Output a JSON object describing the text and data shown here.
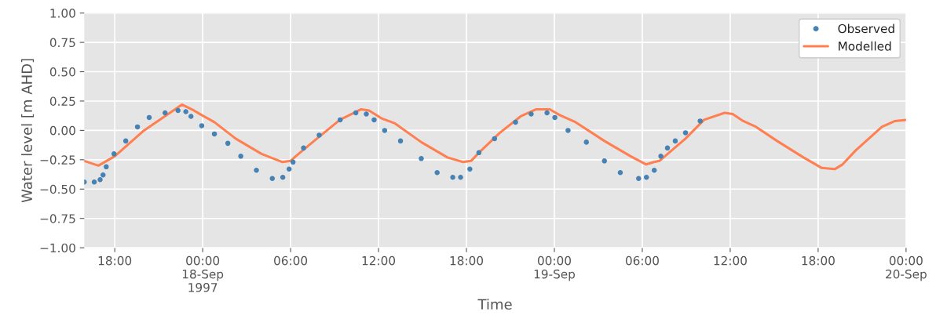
{
  "chart_data": {
    "type": "line",
    "xlabel": "Time",
    "ylabel": "Water level [m AHD]",
    "xlim": [
      "1997-09-17T15:55",
      "1997-09-20T00:00"
    ],
    "ylim": [
      -1,
      1
    ],
    "xticks": [
      {
        "value": "1997-09-17T18:00",
        "label": "18:00"
      },
      {
        "value": "1997-09-18T00:00",
        "label": "00:00\n18-Sep\n1997"
      },
      {
        "value": "1997-09-18T06:00",
        "label": "06:00"
      },
      {
        "value": "1997-09-18T12:00",
        "label": "12:00"
      },
      {
        "value": "1997-09-18T18:00",
        "label": "18:00"
      },
      {
        "value": "1997-09-19T00:00",
        "label": "00:00\n19-Sep"
      },
      {
        "value": "1997-09-19T06:00",
        "label": "06:00"
      },
      {
        "value": "1997-09-19T12:00",
        "label": "12:00"
      },
      {
        "value": "1997-09-19T18:00",
        "label": "18:00"
      },
      {
        "value": "1997-09-20T00:00",
        "label": "00:00\n20-Sep"
      }
    ],
    "yticks": [
      {
        "value": -1,
        "label": "−1.00"
      },
      {
        "value": -0.75,
        "label": "−0.75"
      },
      {
        "value": -0.5,
        "label": "−0.50"
      },
      {
        "value": -0.25,
        "label": "−0.25"
      },
      {
        "value": 0,
        "label": "0.00"
      },
      {
        "value": 0.25,
        "label": "0.25"
      },
      {
        "value": 0.5,
        "label": "0.50"
      },
      {
        "value": 0.75,
        "label": "0.75"
      },
      {
        "value": 1,
        "label": "1.00"
      }
    ],
    "grid": true,
    "legend": "top right",
    "series": [
      {
        "name": "Observed",
        "type": "scatter",
        "marker": "circle",
        "color": "#4682b4",
        "x": [
          "1997-09-17T15:55",
          "1997-09-17T16:36",
          "1997-09-17T17:00",
          "1997-09-17T17:12",
          "1997-09-17T17:25",
          "1997-09-17T17:57",
          "1997-09-17T18:45",
          "1997-09-17T19:33",
          "1997-09-17T20:21",
          "1997-09-17T21:26",
          "1997-09-17T22:19",
          "1997-09-17T22:51",
          "1997-09-17T23:12",
          "1997-09-17T23:56",
          "1997-09-18T00:48",
          "1997-09-18T01:43",
          "1997-09-18T02:36",
          "1997-09-18T03:40",
          "1997-09-18T04:45",
          "1997-09-18T05:28",
          "1997-09-18T05:54",
          "1997-09-18T06:10",
          "1997-09-18T06:53",
          "1997-09-18T07:57",
          "1997-09-18T09:23",
          "1997-09-18T10:27",
          "1997-09-18T11:10",
          "1997-09-18T11:42",
          "1997-09-18T12:25",
          "1997-09-18T13:30",
          "1997-09-18T14:55",
          "1997-09-18T16:00",
          "1997-09-18T17:04",
          "1997-09-18T17:36",
          "1997-09-18T18:14",
          "1997-09-18T18:51",
          "1997-09-18T19:55",
          "1997-09-18T21:21",
          "1997-09-18T22:25",
          "1997-09-18T23:30",
          "1997-09-19T00:02",
          "1997-09-19T00:56",
          "1997-09-19T02:11",
          "1997-09-19T03:25",
          "1997-09-19T04:30",
          "1997-09-19T05:45",
          "1997-09-19T06:17",
          "1997-09-19T06:49",
          "1997-09-19T07:16",
          "1997-09-19T07:43",
          "1997-09-19T08:15",
          "1997-09-19T08:57",
          "1997-09-19T09:57"
        ],
        "values": [
          -0.44,
          -0.44,
          -0.42,
          -0.38,
          -0.31,
          -0.2,
          -0.09,
          0.03,
          0.11,
          0.15,
          0.17,
          0.16,
          0.12,
          0.04,
          -0.03,
          -0.11,
          -0.22,
          -0.34,
          -0.41,
          -0.4,
          -0.33,
          -0.27,
          -0.15,
          -0.04,
          0.09,
          0.15,
          0.14,
          0.09,
          0.0,
          -0.09,
          -0.24,
          -0.36,
          -0.4,
          -0.4,
          -0.33,
          -0.19,
          -0.07,
          0.07,
          0.14,
          0.15,
          0.11,
          0.0,
          -0.1,
          -0.26,
          -0.36,
          -0.41,
          -0.4,
          -0.34,
          -0.22,
          -0.15,
          -0.09,
          -0.02,
          0.08
        ]
      },
      {
        "name": "Modelled",
        "line_style": "solid",
        "color": "#ff7f50",
        "x": [
          "1997-09-17T15:55",
          "1997-09-17T16:53",
          "1997-09-17T18:00",
          "1997-09-17T20:00",
          "1997-09-17T22:35",
          "1997-09-17T23:24",
          "1997-09-17T23:56",
          "1997-09-18T00:48",
          "1997-09-18T02:15",
          "1997-09-18T04:01",
          "1997-09-18T05:27",
          "1997-09-18T06:00",
          "1997-09-18T06:21",
          "1997-09-18T07:36",
          "1997-09-18T09:22",
          "1997-09-18T10:49",
          "1997-09-18T11:21",
          "1997-09-18T12:15",
          "1997-09-18T13:07",
          "1997-09-18T14:55",
          "1997-09-18T16:42",
          "1997-09-18T17:46",
          "1997-09-18T18:19",
          "1997-09-18T18:51",
          "1997-09-18T20:17",
          "1997-09-18T21:42",
          "1997-09-18T22:46",
          "1997-09-18T23:41",
          "1997-09-19T00:22",
          "1997-09-19T01:27",
          "1997-09-19T03:25",
          "1997-09-19T05:12",
          "1997-09-19T06:16",
          "1997-09-19T06:48",
          "1997-09-19T07:10",
          "1997-09-19T08:57",
          "1997-09-19T10:13",
          "1997-09-19T11:37",
          "1997-09-19T12:10",
          "1997-09-19T12:53",
          "1997-09-19T13:46",
          "1997-09-19T15:12",
          "1997-09-19T17:00",
          "1997-09-19T18:15",
          "1997-09-19T19:08",
          "1997-09-19T19:40",
          "1997-09-19T20:34",
          "1997-09-19T22:21",
          "1997-09-19T23:15",
          "1997-09-20T00:00"
        ],
        "values": [
          -0.26,
          -0.3,
          -0.22,
          0.0,
          0.22,
          0.17,
          0.13,
          0.07,
          -0.07,
          -0.2,
          -0.27,
          -0.26,
          -0.22,
          -0.09,
          0.09,
          0.18,
          0.17,
          0.1,
          0.06,
          -0.1,
          -0.23,
          -0.27,
          -0.26,
          -0.19,
          -0.02,
          0.12,
          0.18,
          0.18,
          0.13,
          0.07,
          -0.09,
          -0.22,
          -0.29,
          -0.27,
          -0.26,
          -0.07,
          0.09,
          0.15,
          0.14,
          0.08,
          0.03,
          -0.09,
          -0.23,
          -0.32,
          -0.33,
          -0.29,
          -0.17,
          0.03,
          0.08,
          0.09
        ]
      }
    ]
  }
}
